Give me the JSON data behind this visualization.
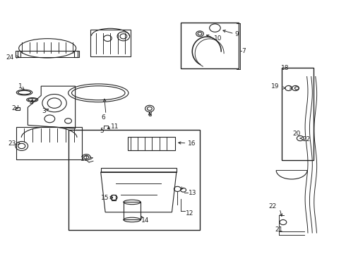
{
  "bg_color": "#ffffff",
  "line_color": "#222222",
  "fig_width": 4.9,
  "fig_height": 3.6,
  "dpi": 100
}
